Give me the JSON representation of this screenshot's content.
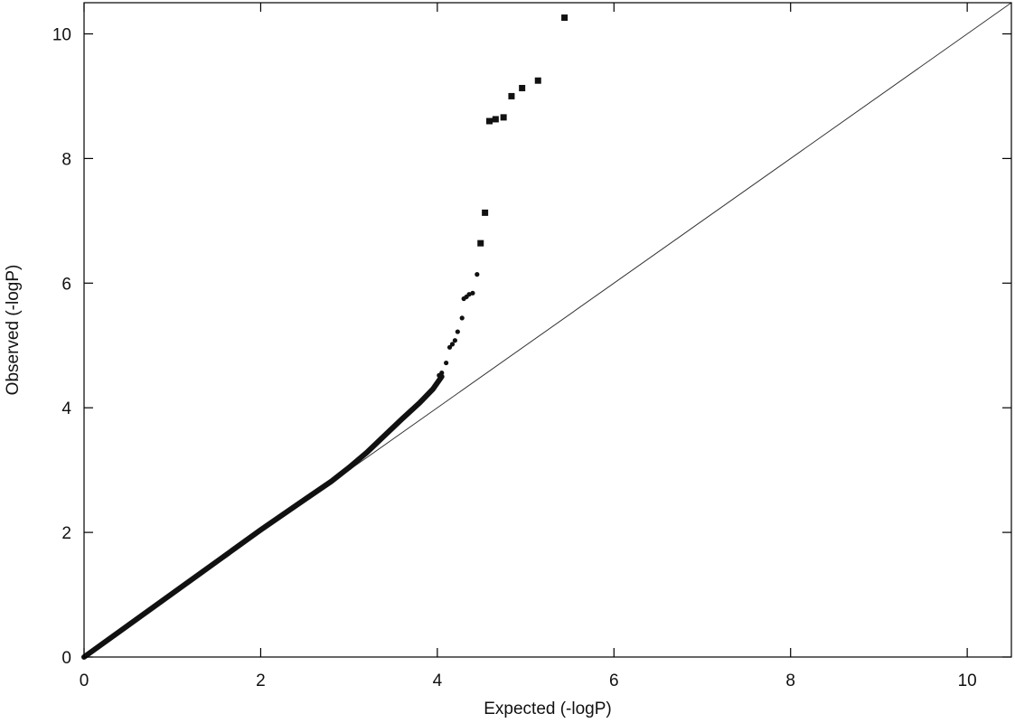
{
  "chart_data": {
    "type": "scatter",
    "title": "",
    "xlabel": "Expected (-logP)",
    "ylabel": "Observed (-logP)",
    "xlim": [
      0,
      10.5
    ],
    "ylim": [
      0,
      10.5
    ],
    "x_ticks": [
      0,
      2,
      4,
      6,
      8,
      10
    ],
    "y_ticks": [
      0,
      2,
      4,
      6,
      8,
      10
    ],
    "x_tick_labels": [
      "0",
      "2",
      "4",
      "6",
      "8",
      "10"
    ],
    "y_tick_labels": [
      "0",
      "2",
      "4",
      "6",
      "8",
      "10"
    ],
    "grid": false,
    "legend": "none",
    "reference_line": {
      "from": [
        0,
        0
      ],
      "to": [
        10.5,
        10.5
      ]
    },
    "colors": {
      "points": "#111111",
      "line": "#333333",
      "axes": "#000000"
    },
    "dense_band": [
      [
        0,
        0
      ],
      [
        0.5,
        0.51
      ],
      [
        1.0,
        1.02
      ],
      [
        1.5,
        1.53
      ],
      [
        2.0,
        2.04
      ],
      [
        2.5,
        2.53
      ],
      [
        2.8,
        2.82
      ],
      [
        3.0,
        3.04
      ],
      [
        3.2,
        3.28
      ],
      [
        3.4,
        3.55
      ],
      [
        3.6,
        3.82
      ],
      [
        3.8,
        4.08
      ],
      [
        3.95,
        4.3
      ],
      [
        4.05,
        4.5
      ]
    ],
    "points": [
      {
        "x": 4.02,
        "y": 4.52,
        "marker": "circle"
      },
      {
        "x": 4.05,
        "y": 4.56,
        "marker": "circle"
      },
      {
        "x": 4.1,
        "y": 4.72,
        "marker": "circle"
      },
      {
        "x": 4.14,
        "y": 4.97,
        "marker": "circle"
      },
      {
        "x": 4.17,
        "y": 5.02,
        "marker": "circle"
      },
      {
        "x": 4.2,
        "y": 5.08,
        "marker": "circle"
      },
      {
        "x": 4.23,
        "y": 5.22,
        "marker": "circle"
      },
      {
        "x": 4.28,
        "y": 5.44,
        "marker": "circle"
      },
      {
        "x": 4.3,
        "y": 5.75,
        "marker": "circle"
      },
      {
        "x": 4.33,
        "y": 5.78,
        "marker": "circle"
      },
      {
        "x": 4.36,
        "y": 5.82,
        "marker": "circle"
      },
      {
        "x": 4.4,
        "y": 5.84,
        "marker": "circle"
      },
      {
        "x": 4.45,
        "y": 6.14,
        "marker": "circle"
      },
      {
        "x": 4.49,
        "y": 6.64,
        "marker": "square"
      },
      {
        "x": 4.54,
        "y": 7.13,
        "marker": "square"
      },
      {
        "x": 4.59,
        "y": 8.6,
        "marker": "square"
      },
      {
        "x": 4.66,
        "y": 8.63,
        "marker": "square"
      },
      {
        "x": 4.75,
        "y": 8.66,
        "marker": "square"
      },
      {
        "x": 4.84,
        "y": 9.0,
        "marker": "square"
      },
      {
        "x": 4.96,
        "y": 9.13,
        "marker": "square"
      },
      {
        "x": 5.14,
        "y": 9.25,
        "marker": "square"
      },
      {
        "x": 5.44,
        "y": 10.26,
        "marker": "square"
      }
    ]
  }
}
